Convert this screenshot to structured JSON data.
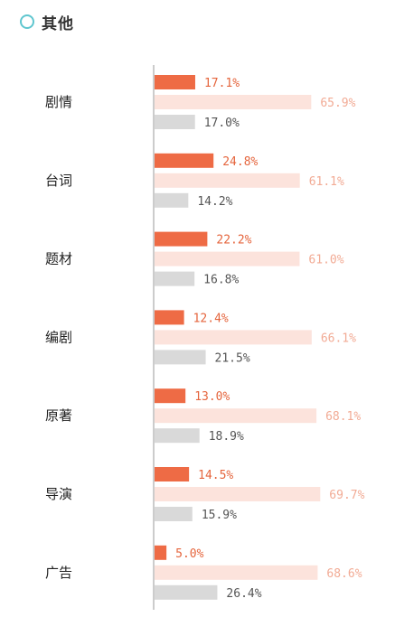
{
  "header": {
    "title": "其他",
    "icon": "circle-outline-icon",
    "icon_color": "#5fc6cf"
  },
  "chart_data": {
    "type": "bar",
    "orientation": "horizontal",
    "categories": [
      "剧情",
      "台词",
      "题材",
      "编剧",
      "原著",
      "导演",
      "广告"
    ],
    "series": [
      {
        "color": "#ee6b45",
        "label_color": "#e5653d",
        "values": [
          17.1,
          24.8,
          22.2,
          12.4,
          13.0,
          14.5,
          5.0
        ]
      },
      {
        "color": "#fce3dc",
        "label_color": "#f2ab95",
        "values": [
          65.9,
          61.1,
          61.0,
          66.1,
          68.1,
          69.7,
          68.6
        ]
      },
      {
        "color": "#d9d9d9",
        "label_color": "#555555",
        "values": [
          17.0,
          14.2,
          16.8,
          21.5,
          18.9,
          15.9,
          26.4
        ]
      }
    ],
    "value_format": "percent_1dp",
    "xlim": [
      0,
      100
    ],
    "grid": false,
    "legend": "none"
  }
}
